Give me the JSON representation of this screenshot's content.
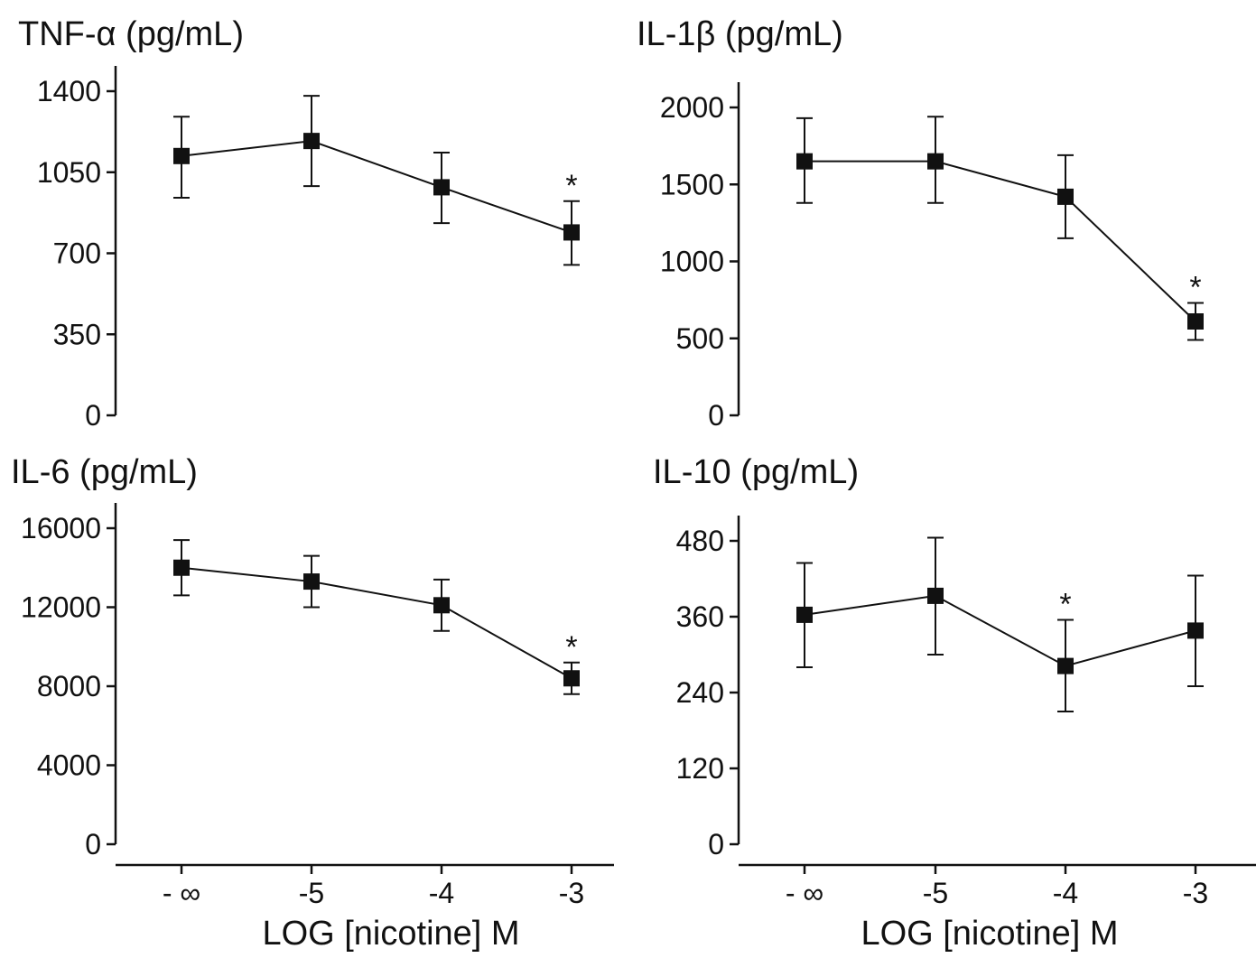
{
  "chart_data": [
    {
      "type": "line",
      "title": "TNF-α (pg/mL)",
      "xlabel": "LOG [nicotine] M",
      "categories": [
        "- ∞",
        "-5",
        "-4",
        "-3"
      ],
      "ylim": [
        0,
        1400
      ],
      "yticks": [
        0,
        350,
        700,
        1050,
        1400
      ],
      "series": [
        {
          "values": [
            1120,
            1185,
            985,
            790
          ],
          "error_low": [
            940,
            990,
            830,
            650
          ],
          "error_high": [
            1290,
            1380,
            1135,
            925
          ],
          "significant": [
            false,
            false,
            false,
            true
          ]
        }
      ],
      "annotation": "*"
    },
    {
      "type": "line",
      "title": "IL-1β (pg/mL)",
      "xlabel": "LOG [nicotine] M",
      "categories": [
        "- ∞",
        "-5",
        "-4",
        "-3"
      ],
      "ylim": [
        0,
        2000
      ],
      "yticks": [
        0,
        500,
        1000,
        1500,
        2000
      ],
      "series": [
        {
          "values": [
            1650,
            1650,
            1420,
            610
          ],
          "error_low": [
            1380,
            1380,
            1150,
            490
          ],
          "error_high": [
            1930,
            1940,
            1690,
            730
          ],
          "significant": [
            false,
            false,
            false,
            true
          ]
        }
      ],
      "annotation": "*"
    },
    {
      "type": "line",
      "title": "IL-6 (pg/mL)",
      "xlabel": "LOG [nicotine] M",
      "categories": [
        "- ∞",
        "-5",
        "-4",
        "-3"
      ],
      "ylim": [
        0,
        16000
      ],
      "yticks": [
        0,
        4000,
        8000,
        12000,
        16000
      ],
      "series": [
        {
          "values": [
            14000,
            13300,
            12100,
            8400
          ],
          "error_low": [
            12600,
            12000,
            10800,
            7600
          ],
          "error_high": [
            15400,
            14600,
            13400,
            9200
          ],
          "significant": [
            false,
            false,
            false,
            true
          ]
        }
      ],
      "annotation": "*"
    },
    {
      "type": "line",
      "title": "IL-10 (pg/mL)",
      "xlabel": "LOG [nicotine] M",
      "categories": [
        "- ∞",
        "-5",
        "-4",
        "-3"
      ],
      "ylim": [
        0,
        480
      ],
      "yticks": [
        0,
        120,
        240,
        360,
        480
      ],
      "series": [
        {
          "values": [
            363,
            393,
            282,
            338
          ],
          "error_low": [
            280,
            300,
            210,
            250
          ],
          "error_high": [
            445,
            485,
            355,
            425
          ],
          "significant": [
            false,
            false,
            true,
            false
          ]
        }
      ],
      "annotation": "*"
    }
  ]
}
